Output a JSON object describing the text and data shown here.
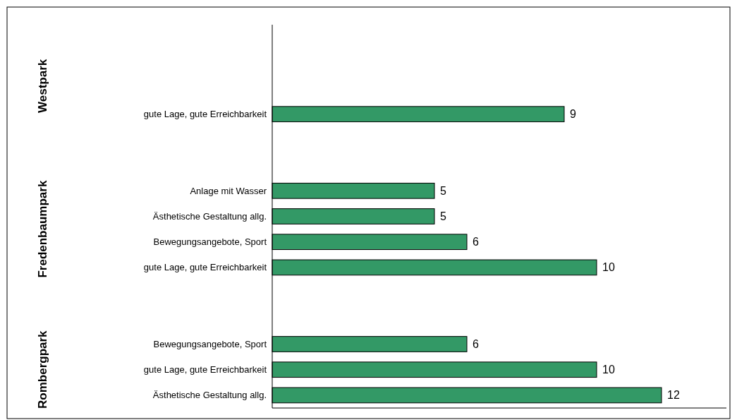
{
  "chart_data": {
    "type": "bar",
    "orientation": "horizontal",
    "categories": [
      null,
      null,
      null,
      "gute Lage, gute Erreichbarkeit",
      null,
      null,
      "Anlage mit Wasser",
      "Ästhetische Gestaltung allg.",
      "Bewegungsangebote, Sport",
      "gute Lage, gute Erreichbarkeit",
      null,
      null,
      "Bewegungsangebote, Sport",
      "gute Lage, gute Erreichbarkeit",
      "Ästhetische Gestaltung allg."
    ],
    "values": [
      null,
      null,
      null,
      9,
      null,
      null,
      5,
      5,
      6,
      10,
      null,
      null,
      6,
      10,
      12
    ],
    "color": "#339966",
    "xlim": [
      0,
      14
    ],
    "data_labels": true,
    "annotations": [
      "Westpark",
      "Fredenbaumpark",
      "Rombergpark"
    ]
  }
}
